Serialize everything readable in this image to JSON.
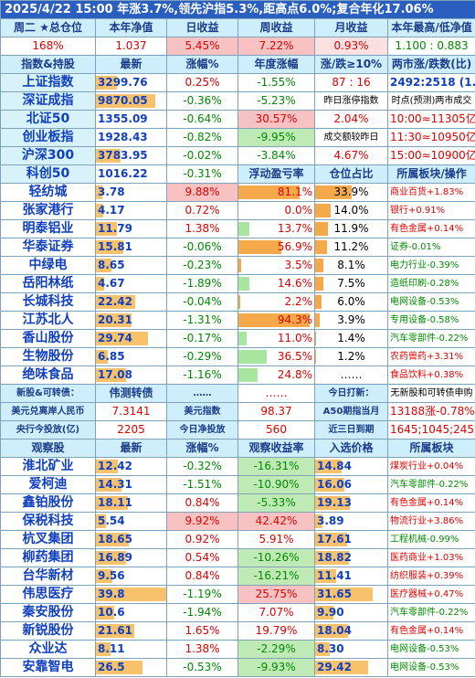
{
  "title": "2025/4/22 15:00 年涨3.7%,领先沪指5.3%,距高点6.0%;复合年化17.06%",
  "summary": {
    "headers": [
      "周二 ★总仓位",
      "本年净值",
      "日收益",
      "周收益",
      "月收益",
      "本年最高/低净值"
    ],
    "values": [
      "168%",
      "1.037",
      "5.45%",
      "7.22%",
      "0.93%",
      "1.100 : 0.883"
    ]
  },
  "index": {
    "headers": [
      "指数&持股",
      "最新",
      "涨幅%",
      "年度涨幅",
      "涨/跌≥10%",
      "两市涨/跌数(比)"
    ],
    "rows": [
      {
        "name": "上证指数",
        "latest": "3299.76",
        "chg": "0.25%",
        "ytd": "-1.55%",
        "c5": "87 : 16",
        "c6": "2492:2518 (1.0)"
      },
      {
        "name": "深证成指",
        "latest": "9870.05",
        "chg": "-0.36%",
        "ytd": "-5.23%",
        "c5": "昨日涨停指数",
        "c6": "时点(预测)两市成交"
      },
      {
        "name": "北证50",
        "latest": "1355.09",
        "chg": "-0.64%",
        "ytd": "30.57%",
        "c5": "2.04%",
        "c6": "10:00≈11305亿"
      },
      {
        "name": "创业板指",
        "latest": "1928.43",
        "chg": "-0.82%",
        "ytd": "-9.95%",
        "c5": "成交额较昨日",
        "c6": "11:30≈10950亿"
      },
      {
        "name": "沪深300",
        "latest": "3783.95",
        "chg": "-0.02%",
        "ytd": "-3.84%",
        "c5": "4.67%",
        "c6": "15:00≈10900亿"
      },
      {
        "name": "科创50",
        "latest": "1016.22",
        "chg": "-0.31%",
        "ytd": "浮动盈亏率",
        "c5": "仓位占比",
        "c6": "所属板块/操作"
      }
    ]
  },
  "holdings": [
    {
      "name": "轻纺城",
      "latest": "3.78",
      "chg": "9.88%",
      "pnl": "81.1%",
      "pnl_level": 0.81,
      "pos": "33.9%",
      "pos_level": 0.34,
      "sector": "商业百货+1.83%"
    },
    {
      "name": "张家港行",
      "latest": "4.17",
      "chg": "0.72%",
      "pnl": "0.0%",
      "pnl_level": 0.0,
      "pos": "14.0%",
      "pos_level": 0.14,
      "sector": "银行+0.91%"
    },
    {
      "name": "明泰铝业",
      "latest": "11.79",
      "chg": "1.38%",
      "pnl": "13.7%",
      "pnl_level": 0.14,
      "pos": "11.9%",
      "pos_level": 0.12,
      "sector": "有色金属+0.14%"
    },
    {
      "name": "华泰证券",
      "latest": "15.81",
      "chg": "-0.06%",
      "pnl": "56.9%",
      "pnl_level": 0.57,
      "pos": "11.2%",
      "pos_level": 0.11,
      "sector": "证券-0.01%"
    },
    {
      "name": "中绿电",
      "latest": "8.65",
      "chg": "-0.23%",
      "pnl": "3.5%",
      "pnl_level": 0.04,
      "pos": "8.1%",
      "pos_level": 0.08,
      "sector": "电力行业-0.39%"
    },
    {
      "name": "岳阳林纸",
      "latest": "4.67",
      "chg": "-1.89%",
      "pnl": "14.6%",
      "pnl_level": 0.15,
      "pos": "7.5%",
      "pos_level": 0.08,
      "sector": "造纸印刷-0.28%"
    },
    {
      "name": "长城科技",
      "latest": "22.42",
      "chg": "-0.04%",
      "pnl": "2.2%",
      "pnl_level": 0.02,
      "pos": "6.0%",
      "pos_level": 0.06,
      "sector": "电网设备-0.53%"
    },
    {
      "name": "江苏北人",
      "latest": "20.31",
      "chg": "-1.31%",
      "pnl": "94.3%",
      "pnl_level": 0.94,
      "pos": "3.9%",
      "pos_level": 0.04,
      "sector": "专用设备-0.58%"
    },
    {
      "name": "香山股份",
      "latest": "29.74",
      "chg": "-0.17%",
      "pnl": "11.0%",
      "pnl_level": 0.11,
      "pos": "1.4%",
      "pos_level": 0.01,
      "sector": "汽车零部件-0.22%"
    },
    {
      "name": "生物股份",
      "latest": "6.85",
      "chg": "-0.29%",
      "pnl": "36.5%",
      "pnl_level": 0.37,
      "pos": "1.2%",
      "pos_level": 0.01,
      "sector": "农药兽药+3.31%"
    },
    {
      "name": "绝味食品",
      "latest": "17.08",
      "chg": "-1.16%",
      "pnl": "24.8%",
      "pnl_level": 0.25,
      "pos": "……",
      "pos_level": 0,
      "sector": "食品饮料+0.38%"
    }
  ],
  "misc": {
    "row1": [
      "新股&可转债：",
      "伟测转债",
      "……",
      "……",
      "今日打新：",
      "无新股和可转债申购"
    ],
    "row2": [
      "美元兑离岸人民币",
      "7.3141",
      "美元指数",
      "98.37",
      "A50期指当月",
      "13188涨-0.78%"
    ],
    "row3": [
      "央行今投放(亿)",
      "2205",
      "今日净投放",
      "560",
      "近三日到期",
      "1645;1045;2455"
    ]
  },
  "watch": {
    "headers": [
      "观察股",
      "最新",
      "涨幅%",
      "观察收益率",
      "入选价格",
      "所属板块"
    ],
    "rows": [
      {
        "name": "淮北矿业",
        "latest": "12.42",
        "chg": "-0.32%",
        "ret": "-16.31%",
        "price": "14.84",
        "sector": "煤炭行业+0.04%"
      },
      {
        "name": "爱柯迪",
        "latest": "14.31",
        "chg": "-1.51%",
        "ret": "-10.90%",
        "price": "16.06",
        "sector": "汽车零部件-0.22%"
      },
      {
        "name": "鑫铂股份",
        "latest": "18.11",
        "chg": "0.84%",
        "ret": "-5.33%",
        "price": "19.13",
        "sector": "有色金属+0.14%"
      },
      {
        "name": "保税科技",
        "latest": "5.54",
        "chg": "9.92%",
        "ret": "42.42%",
        "price": "3.89",
        "sector": "物流行业+3.86%"
      },
      {
        "name": "杭叉集团",
        "latest": "18.65",
        "chg": "0.92%",
        "ret": "5.91%",
        "price": "17.61",
        "sector": "工程机械-0.99%"
      },
      {
        "name": "柳药集团",
        "latest": "16.89",
        "chg": "0.54%",
        "ret": "-10.26%",
        "price": "18.82",
        "sector": "医药商业+1.03%"
      },
      {
        "name": "台华新材",
        "latest": "9.56",
        "chg": "0.84%",
        "ret": "-16.21%",
        "price": "11.41",
        "sector": "纺织服装+0.39%"
      },
      {
        "name": "伟思医疗",
        "latest": "39.8",
        "chg": "-1.19%",
        "ret": "25.75%",
        "price": "31.65",
        "sector": "医疗器械+0.47%"
      },
      {
        "name": "秦安股份",
        "latest": "10.6",
        "chg": "-1.94%",
        "ret": "7.07%",
        "price": "9.90",
        "sector": "汽车零部件-0.22%"
      },
      {
        "name": "新锐股份",
        "latest": "21.61",
        "chg": "1.65%",
        "ret": "19.79%",
        "price": "18.04",
        "sector": "有色金属+0.14%"
      },
      {
        "name": "众业达",
        "latest": "8.11",
        "chg": "1.38%",
        "ret": "-2.29%",
        "price": "8.30",
        "sector": "电网设备-0.53%"
      },
      {
        "name": "安靠智电",
        "latest": "26.5",
        "chg": "-0.53%",
        "ret": "-9.93%",
        "price": "29.42",
        "sector": "电网设备-0.53%"
      }
    ]
  },
  "colors": {
    "up": "#e00000",
    "down": "#008a00",
    "header_bg": "#cdeefa",
    "title_bg": "#2a5fc0",
    "bar_orange": "#f6a94a",
    "bar_green": "#a8e6a0",
    "bar_red": "#f4b6b6"
  }
}
